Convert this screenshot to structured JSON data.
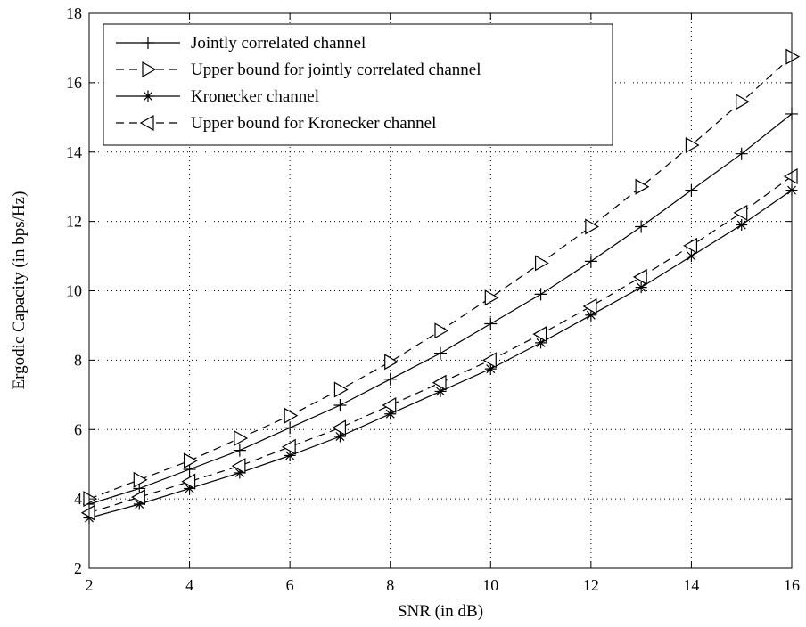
{
  "chart_data": {
    "type": "line",
    "title": "",
    "xlabel": "SNR (in dB)",
    "ylabel": "Ergodic Capacity (in bps/Hz)",
    "xlim": [
      2,
      16
    ],
    "ylim": [
      2,
      18
    ],
    "xticks": [
      2,
      4,
      6,
      8,
      10,
      12,
      14,
      16
    ],
    "yticks": [
      2,
      4,
      6,
      8,
      10,
      12,
      14,
      16,
      18
    ],
    "grid": true,
    "legend_position": "top-left",
    "x": [
      2,
      3,
      4,
      5,
      6,
      7,
      8,
      9,
      10,
      11,
      12,
      13,
      14,
      15,
      16
    ],
    "series": [
      {
        "name": "Jointly correlated channel",
        "line_style": "solid",
        "marker": "plus",
        "color": "#000000",
        "values": [
          3.85,
          4.3,
          4.85,
          5.4,
          6.05,
          6.7,
          7.45,
          8.2,
          9.05,
          9.9,
          10.85,
          11.85,
          12.9,
          13.95,
          15.1
        ]
      },
      {
        "name": "Upper bound for jointly correlated channel",
        "line_style": "dashed",
        "marker": "triangle-right",
        "color": "#000000",
        "values": [
          4.0,
          4.55,
          5.1,
          5.75,
          6.4,
          7.15,
          7.95,
          8.85,
          9.8,
          10.8,
          11.85,
          13.0,
          14.2,
          15.45,
          16.75
        ]
      },
      {
        "name": "Kronecker channel",
        "line_style": "solid",
        "marker": "asterisk",
        "color": "#000000",
        "values": [
          3.45,
          3.85,
          4.3,
          4.75,
          5.25,
          5.8,
          6.45,
          7.1,
          7.75,
          8.5,
          9.3,
          10.1,
          11.0,
          11.9,
          12.9
        ]
      },
      {
        "name": "Upper bound for Kronecker channel",
        "line_style": "dashed",
        "marker": "triangle-left",
        "color": "#000000",
        "values": [
          3.6,
          4.05,
          4.5,
          4.95,
          5.5,
          6.05,
          6.7,
          7.35,
          8.0,
          8.75,
          9.55,
          10.4,
          11.3,
          12.25,
          13.3
        ]
      }
    ]
  }
}
